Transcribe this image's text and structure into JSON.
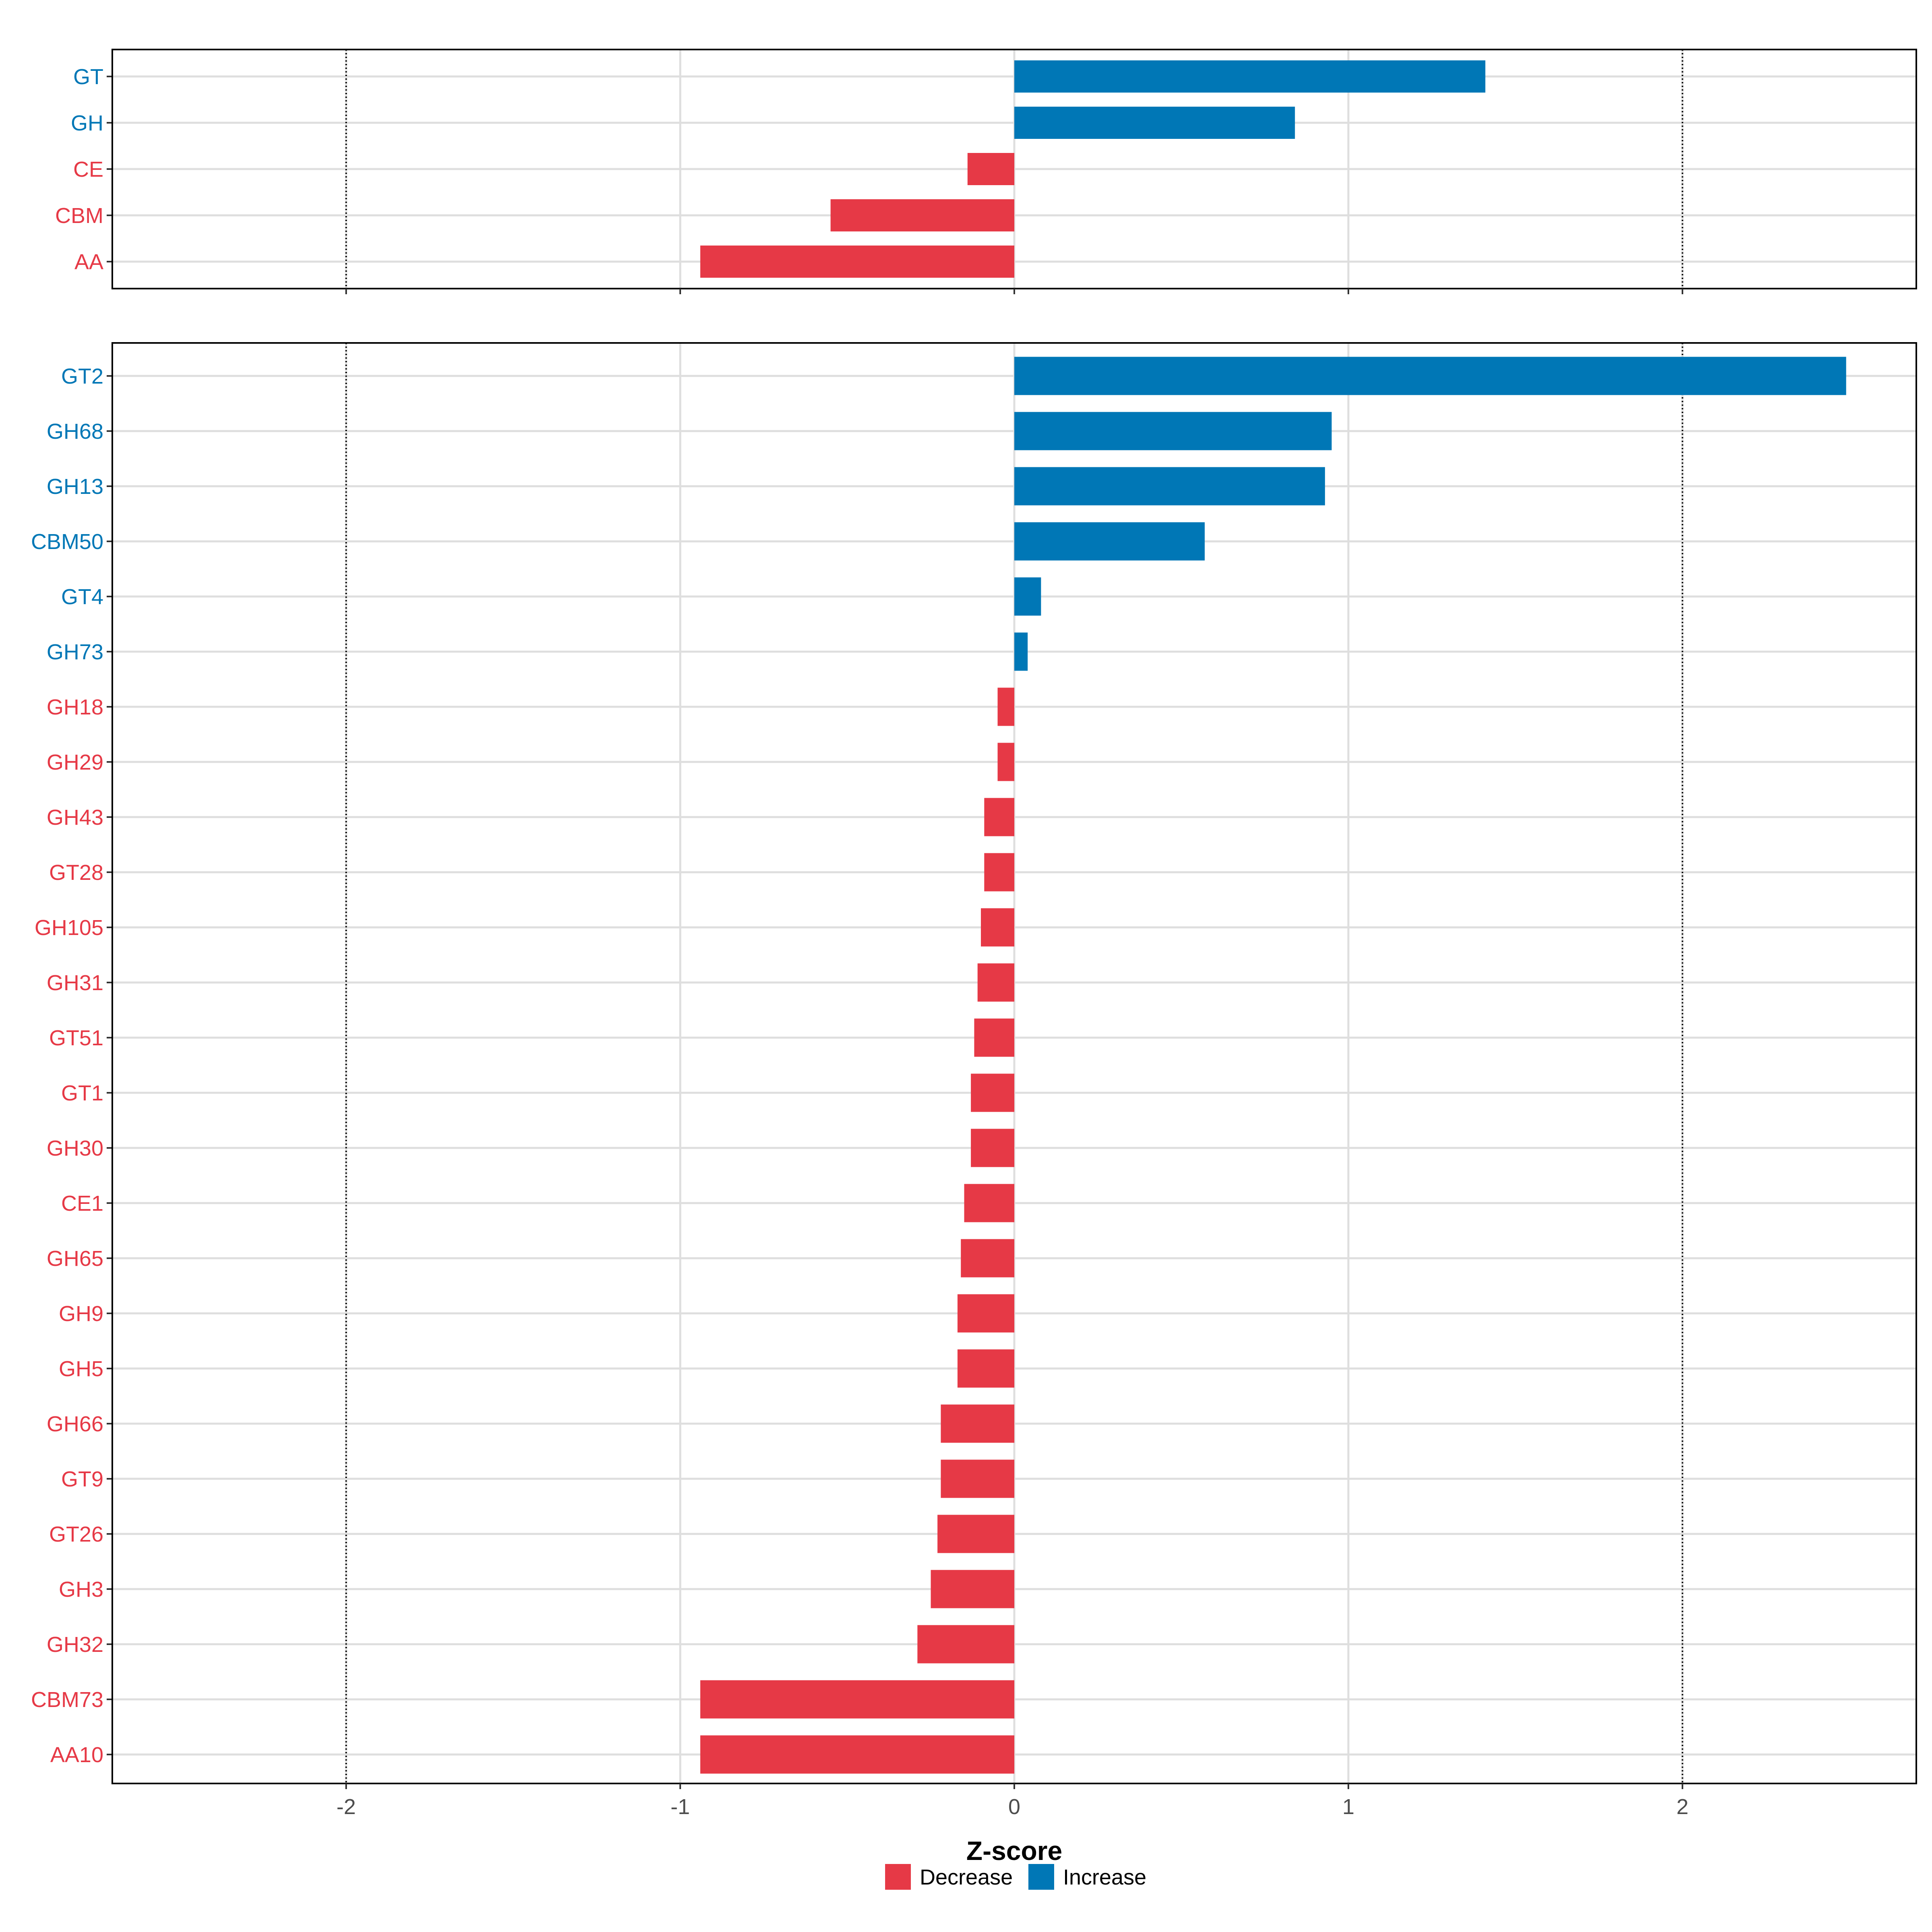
{
  "chart_data": {
    "type": "bar",
    "orientation": "horizontal",
    "xlabel": "Z-score",
    "xlim": [
      -2.7,
      2.7
    ],
    "x_ticks": [
      -2,
      -1,
      0,
      1,
      2
    ],
    "x_tick_labels": [
      "-2",
      "-1",
      "0",
      "1",
      "2"
    ],
    "reference_lines": [
      -2,
      2
    ],
    "grid": true,
    "colors": {
      "Decrease": "#E63946",
      "Increase": "#0077B6"
    },
    "legend": {
      "position": "bottom",
      "entries": [
        {
          "label": "Decrease",
          "color": "#E63946"
        },
        {
          "label": "Increase",
          "color": "#0077B6"
        }
      ]
    },
    "panels": [
      {
        "name": "class",
        "categories": [
          "GT",
          "GH",
          "CE",
          "CBM",
          "AA"
        ],
        "values": [
          1.41,
          0.84,
          -0.14,
          -0.55,
          -0.94
        ],
        "groups": [
          "Increase",
          "Increase",
          "Decrease",
          "Decrease",
          "Decrease"
        ]
      },
      {
        "name": "family",
        "categories": [
          "GT2",
          "GH68",
          "GH13",
          "CBM50",
          "GT4",
          "GH73",
          "GH18",
          "GH29",
          "GH43",
          "GT28",
          "GH105",
          "GH31",
          "GT51",
          "GT1",
          "GH30",
          "CE1",
          "GH65",
          "GH9",
          "GH5",
          "GH66",
          "GT9",
          "GT26",
          "GH3",
          "GH32",
          "CBM73",
          "AA10"
        ],
        "values": [
          2.49,
          0.95,
          0.93,
          0.57,
          0.08,
          0.04,
          -0.05,
          -0.05,
          -0.09,
          -0.09,
          -0.1,
          -0.11,
          -0.12,
          -0.13,
          -0.13,
          -0.15,
          -0.16,
          -0.17,
          -0.17,
          -0.22,
          -0.22,
          -0.23,
          -0.25,
          -0.29,
          -0.94,
          -0.94
        ],
        "groups": [
          "Increase",
          "Increase",
          "Increase",
          "Increase",
          "Increase",
          "Increase",
          "Decrease",
          "Decrease",
          "Decrease",
          "Decrease",
          "Decrease",
          "Decrease",
          "Decrease",
          "Decrease",
          "Decrease",
          "Decrease",
          "Decrease",
          "Decrease",
          "Decrease",
          "Decrease",
          "Decrease",
          "Decrease",
          "Decrease",
          "Decrease",
          "Decrease",
          "Decrease"
        ]
      }
    ]
  }
}
